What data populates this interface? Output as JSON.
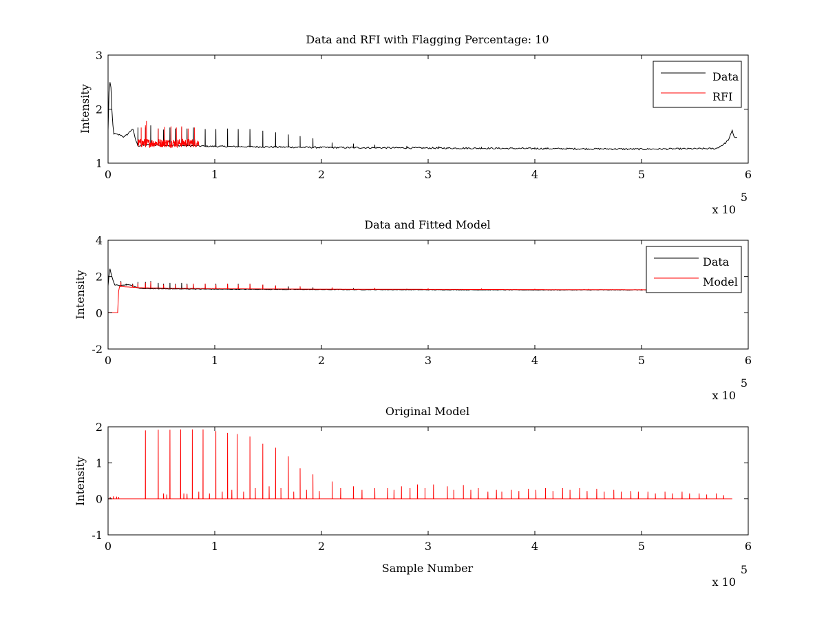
{
  "colors": {
    "data": "#000000",
    "red": "#ff0000",
    "background": "#ffffff"
  },
  "chart_data": [
    {
      "type": "line",
      "title": "Data and RFI with Flagging Percentage: 10",
      "xlabel": "",
      "ylabel": "Intensity",
      "xlim": [
        0,
        600000
      ],
      "ylim": [
        1,
        3
      ],
      "xticks": [
        "0",
        "1",
        "2",
        "3",
        "4",
        "5",
        "6"
      ],
      "yticks": [
        "1",
        "2",
        "3"
      ],
      "exponent_base": "x 10",
      "exponent_power": "5",
      "legend_position": "top-right",
      "grid": false,
      "series": [
        {
          "name": "Data",
          "color": "#000000",
          "baseline": [
            [
              0,
              1.6
            ],
            [
              800,
              2.3
            ],
            [
              1500,
              2.5
            ],
            [
              2500,
              2.48
            ],
            [
              3500,
              2.0
            ],
            [
              5000,
              1.55
            ],
            [
              8000,
              1.53
            ],
            [
              12000,
              1.52
            ],
            [
              15000,
              1.48
            ],
            [
              19000,
              1.55
            ],
            [
              23000,
              1.64
            ],
            [
              26000,
              1.42
            ],
            [
              28000,
              1.32
            ],
            [
              40000,
              1.34
            ],
            [
              60000,
              1.33
            ],
            [
              80000,
              1.32
            ],
            [
              100000,
              1.31
            ],
            [
              150000,
              1.3
            ],
            [
              200000,
              1.29
            ],
            [
              300000,
              1.28
            ],
            [
              400000,
              1.27
            ],
            [
              500000,
              1.26
            ],
            [
              570000,
              1.27
            ],
            [
              578000,
              1.36
            ],
            [
              582000,
              1.45
            ],
            [
              585000,
              1.6
            ],
            [
              587000,
              1.48
            ],
            [
              590000,
              1.48
            ]
          ],
          "spike_x": [
            28000,
            35000,
            40000,
            47000,
            52000,
            58000,
            63000,
            69000,
            74000,
            80000,
            91000,
            101000,
            112000,
            122000,
            133000,
            145000,
            157000,
            169000,
            180000,
            192000,
            210000,
            230000,
            250000,
            280000,
            310000,
            350000,
            400000
          ],
          "spike_y": [
            1.66,
            1.66,
            1.7,
            1.64,
            1.62,
            1.66,
            1.64,
            1.66,
            1.64,
            1.66,
            1.63,
            1.63,
            1.64,
            1.63,
            1.63,
            1.6,
            1.57,
            1.53,
            1.5,
            1.46,
            1.38,
            1.36,
            1.34,
            1.32,
            1.31,
            1.3,
            1.29
          ]
        },
        {
          "name": "RFI",
          "color": "#ff0000",
          "x_range": [
            28000,
            85000
          ],
          "baseline_level": 1.34,
          "spike_x": [
            31000,
            35000,
            36000,
            47000,
            53000,
            59000,
            64000,
            69000,
            75000,
            81000
          ],
          "spike_y": [
            1.66,
            1.7,
            1.78,
            1.64,
            1.67,
            1.68,
            1.66,
            1.68,
            1.64,
            1.66
          ]
        }
      ]
    },
    {
      "type": "line",
      "title": "Data and Fitted Model",
      "xlabel": "",
      "ylabel": "Intensity",
      "xlim": [
        0,
        600000
      ],
      "ylim": [
        -2,
        4
      ],
      "xticks": [
        "0",
        "1",
        "2",
        "3",
        "4",
        "5",
        "6"
      ],
      "yticks": [
        "-2",
        "0",
        "2",
        "4"
      ],
      "exponent_base": "x 10",
      "exponent_power": "5",
      "legend_position": "top-right",
      "grid": false,
      "series": [
        {
          "name": "Data",
          "color": "#000000",
          "x_max": 510000,
          "baseline": [
            [
              0,
              1.5
            ],
            [
              1500,
              2.5
            ],
            [
              3500,
              2.0
            ],
            [
              6000,
              1.55
            ],
            [
              12000,
              1.5
            ],
            [
              20000,
              1.55
            ],
            [
              26000,
              1.42
            ],
            [
              30000,
              1.33
            ],
            [
              100000,
              1.3
            ],
            [
              200000,
              1.28
            ],
            [
              300000,
              1.27
            ],
            [
              400000,
              1.26
            ],
            [
              510000,
              1.26
            ]
          ],
          "spike_x": [
            12000,
            17000,
            23000,
            28000,
            35000,
            40000,
            47000,
            52000,
            58000,
            63000,
            69000,
            74000,
            80000,
            91000,
            101000,
            112000,
            122000,
            133000,
            145000,
            157000,
            169000,
            180000,
            192000,
            210000,
            230000,
            250000,
            280000,
            310000,
            350000
          ],
          "spike_y": [
            1.75,
            1.6,
            1.6,
            1.7,
            1.7,
            1.75,
            1.65,
            1.6,
            1.65,
            1.6,
            1.65,
            1.6,
            1.6,
            1.6,
            1.6,
            1.6,
            1.6,
            1.6,
            1.55,
            1.5,
            1.45,
            1.45,
            1.4,
            1.38,
            1.36,
            1.34,
            1.32,
            1.3,
            1.29
          ]
        },
        {
          "name": "Model",
          "color": "#ff0000",
          "baseline": [
            [
              0,
              0.0
            ],
            [
              9000,
              0.0
            ],
            [
              9500,
              1.0
            ],
            [
              10500,
              1.45
            ],
            [
              30000,
              1.38
            ],
            [
              100000,
              1.33
            ],
            [
              200000,
              1.3
            ],
            [
              300000,
              1.29
            ],
            [
              400000,
              1.28
            ],
            [
              500000,
              1.27
            ],
            [
              510000,
              1.27
            ]
          ],
          "spike_x": [
            12000,
            23000,
            28000,
            35000,
            40000,
            52000,
            63000,
            74000,
            80000,
            91000,
            101000,
            112000,
            122000,
            133000,
            145000,
            157000,
            180000,
            210000,
            250000,
            300000,
            350000,
            400000,
            450000,
            500000
          ],
          "spike_y": [
            1.7,
            1.55,
            1.62,
            1.65,
            1.7,
            1.55,
            1.55,
            1.55,
            1.6,
            1.6,
            1.55,
            1.6,
            1.55,
            1.6,
            1.55,
            1.5,
            1.45,
            1.4,
            1.38,
            1.35,
            1.33,
            1.32,
            1.31,
            1.3
          ]
        }
      ]
    },
    {
      "type": "line",
      "title": "Original Model",
      "xlabel": "Sample Number",
      "ylabel": "Intensity",
      "xlim": [
        0,
        600000
      ],
      "ylim": [
        -1,
        2
      ],
      "xticks": [
        "0",
        "1",
        "2",
        "3",
        "4",
        "5",
        "6"
      ],
      "yticks": [
        "-1",
        "0",
        "1",
        "2"
      ],
      "exponent_base": "x 10",
      "exponent_power": "5",
      "legend_position": "none",
      "grid": false,
      "series": [
        {
          "name": "",
          "color": "#ff0000",
          "x_range": [
            0,
            585000
          ],
          "baseline_level": 0.0,
          "spike_x": [
            2000,
            5000,
            8000,
            10000,
            35000,
            47000,
            52000,
            55000,
            58000,
            68000,
            71000,
            74000,
            79000,
            85000,
            89000,
            95000,
            101000,
            107000,
            112000,
            116000,
            121000,
            127000,
            133000,
            138000,
            145000,
            151000,
            157000,
            162000,
            169000,
            174000,
            180000,
            186000,
            192000,
            198000,
            210000,
            218000,
            230000,
            238000,
            250000,
            262000,
            268000,
            275000,
            283000,
            290000,
            297000,
            305000,
            318000,
            324000,
            333000,
            340000,
            347000,
            356000,
            364000,
            369000,
            378000,
            385000,
            394000,
            401000,
            410000,
            417000,
            426000,
            433000,
            442000,
            449000,
            458000,
            465000,
            474000,
            481000,
            490000,
            497000,
            506000,
            513000,
            522000,
            529000,
            538000,
            545000,
            554000,
            561000,
            570000,
            577000
          ],
          "spike_y": [
            0.05,
            0.07,
            0.06,
            0.05,
            1.9,
            1.92,
            0.15,
            0.12,
            1.92,
            1.93,
            0.15,
            0.14,
            1.93,
            0.2,
            1.93,
            0.15,
            1.88,
            0.2,
            1.83,
            0.25,
            1.8,
            0.2,
            1.73,
            0.3,
            1.53,
            0.35,
            1.42,
            0.3,
            1.18,
            0.2,
            0.85,
            0.25,
            0.68,
            0.22,
            0.48,
            0.3,
            0.35,
            0.25,
            0.3,
            0.3,
            0.25,
            0.35,
            0.3,
            0.4,
            0.3,
            0.4,
            0.35,
            0.25,
            0.38,
            0.25,
            0.3,
            0.2,
            0.25,
            0.2,
            0.25,
            0.22,
            0.28,
            0.25,
            0.3,
            0.22,
            0.3,
            0.25,
            0.3,
            0.22,
            0.28,
            0.2,
            0.25,
            0.2,
            0.22,
            0.2,
            0.2,
            0.15,
            0.2,
            0.15,
            0.2,
            0.15,
            0.15,
            0.12,
            0.15,
            0.1
          ]
        }
      ]
    }
  ]
}
